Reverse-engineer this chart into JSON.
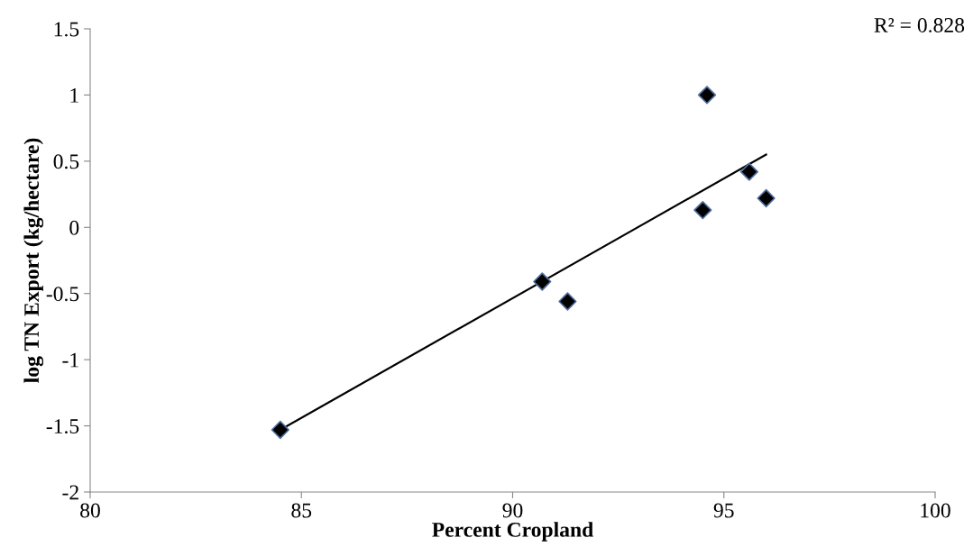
{
  "chart_data": {
    "type": "scatter",
    "xlabel": "Percent Cropland",
    "ylabel": "log TN Export (kg/hectare)",
    "xlim": [
      80,
      100
    ],
    "xticks": [
      80,
      85,
      90,
      95,
      100
    ],
    "ylim": [
      -2,
      1.5
    ],
    "yticks": [
      -2,
      -1.5,
      -1,
      -0.5,
      0,
      0.5,
      1,
      1.5
    ],
    "grid": false,
    "legend": false,
    "series": [
      {
        "color": "#000000",
        "marker": "diamond",
        "x": [
          84.5,
          90.7,
          91.3,
          94.5,
          94.6,
          95.6,
          96.0
        ],
        "values": [
          -1.53,
          -0.41,
          -0.56,
          0.13,
          1.0,
          0.42,
          0.22
        ]
      },
      {
        "type": "line",
        "color": "#000000",
        "marker": "none",
        "line_style": "solid",
        "x": [
          84.5,
          96.0
        ],
        "values": [
          -1.53,
          0.55
        ]
      }
    ],
    "annotations": [
      "R² = 0.828"
    ]
  }
}
